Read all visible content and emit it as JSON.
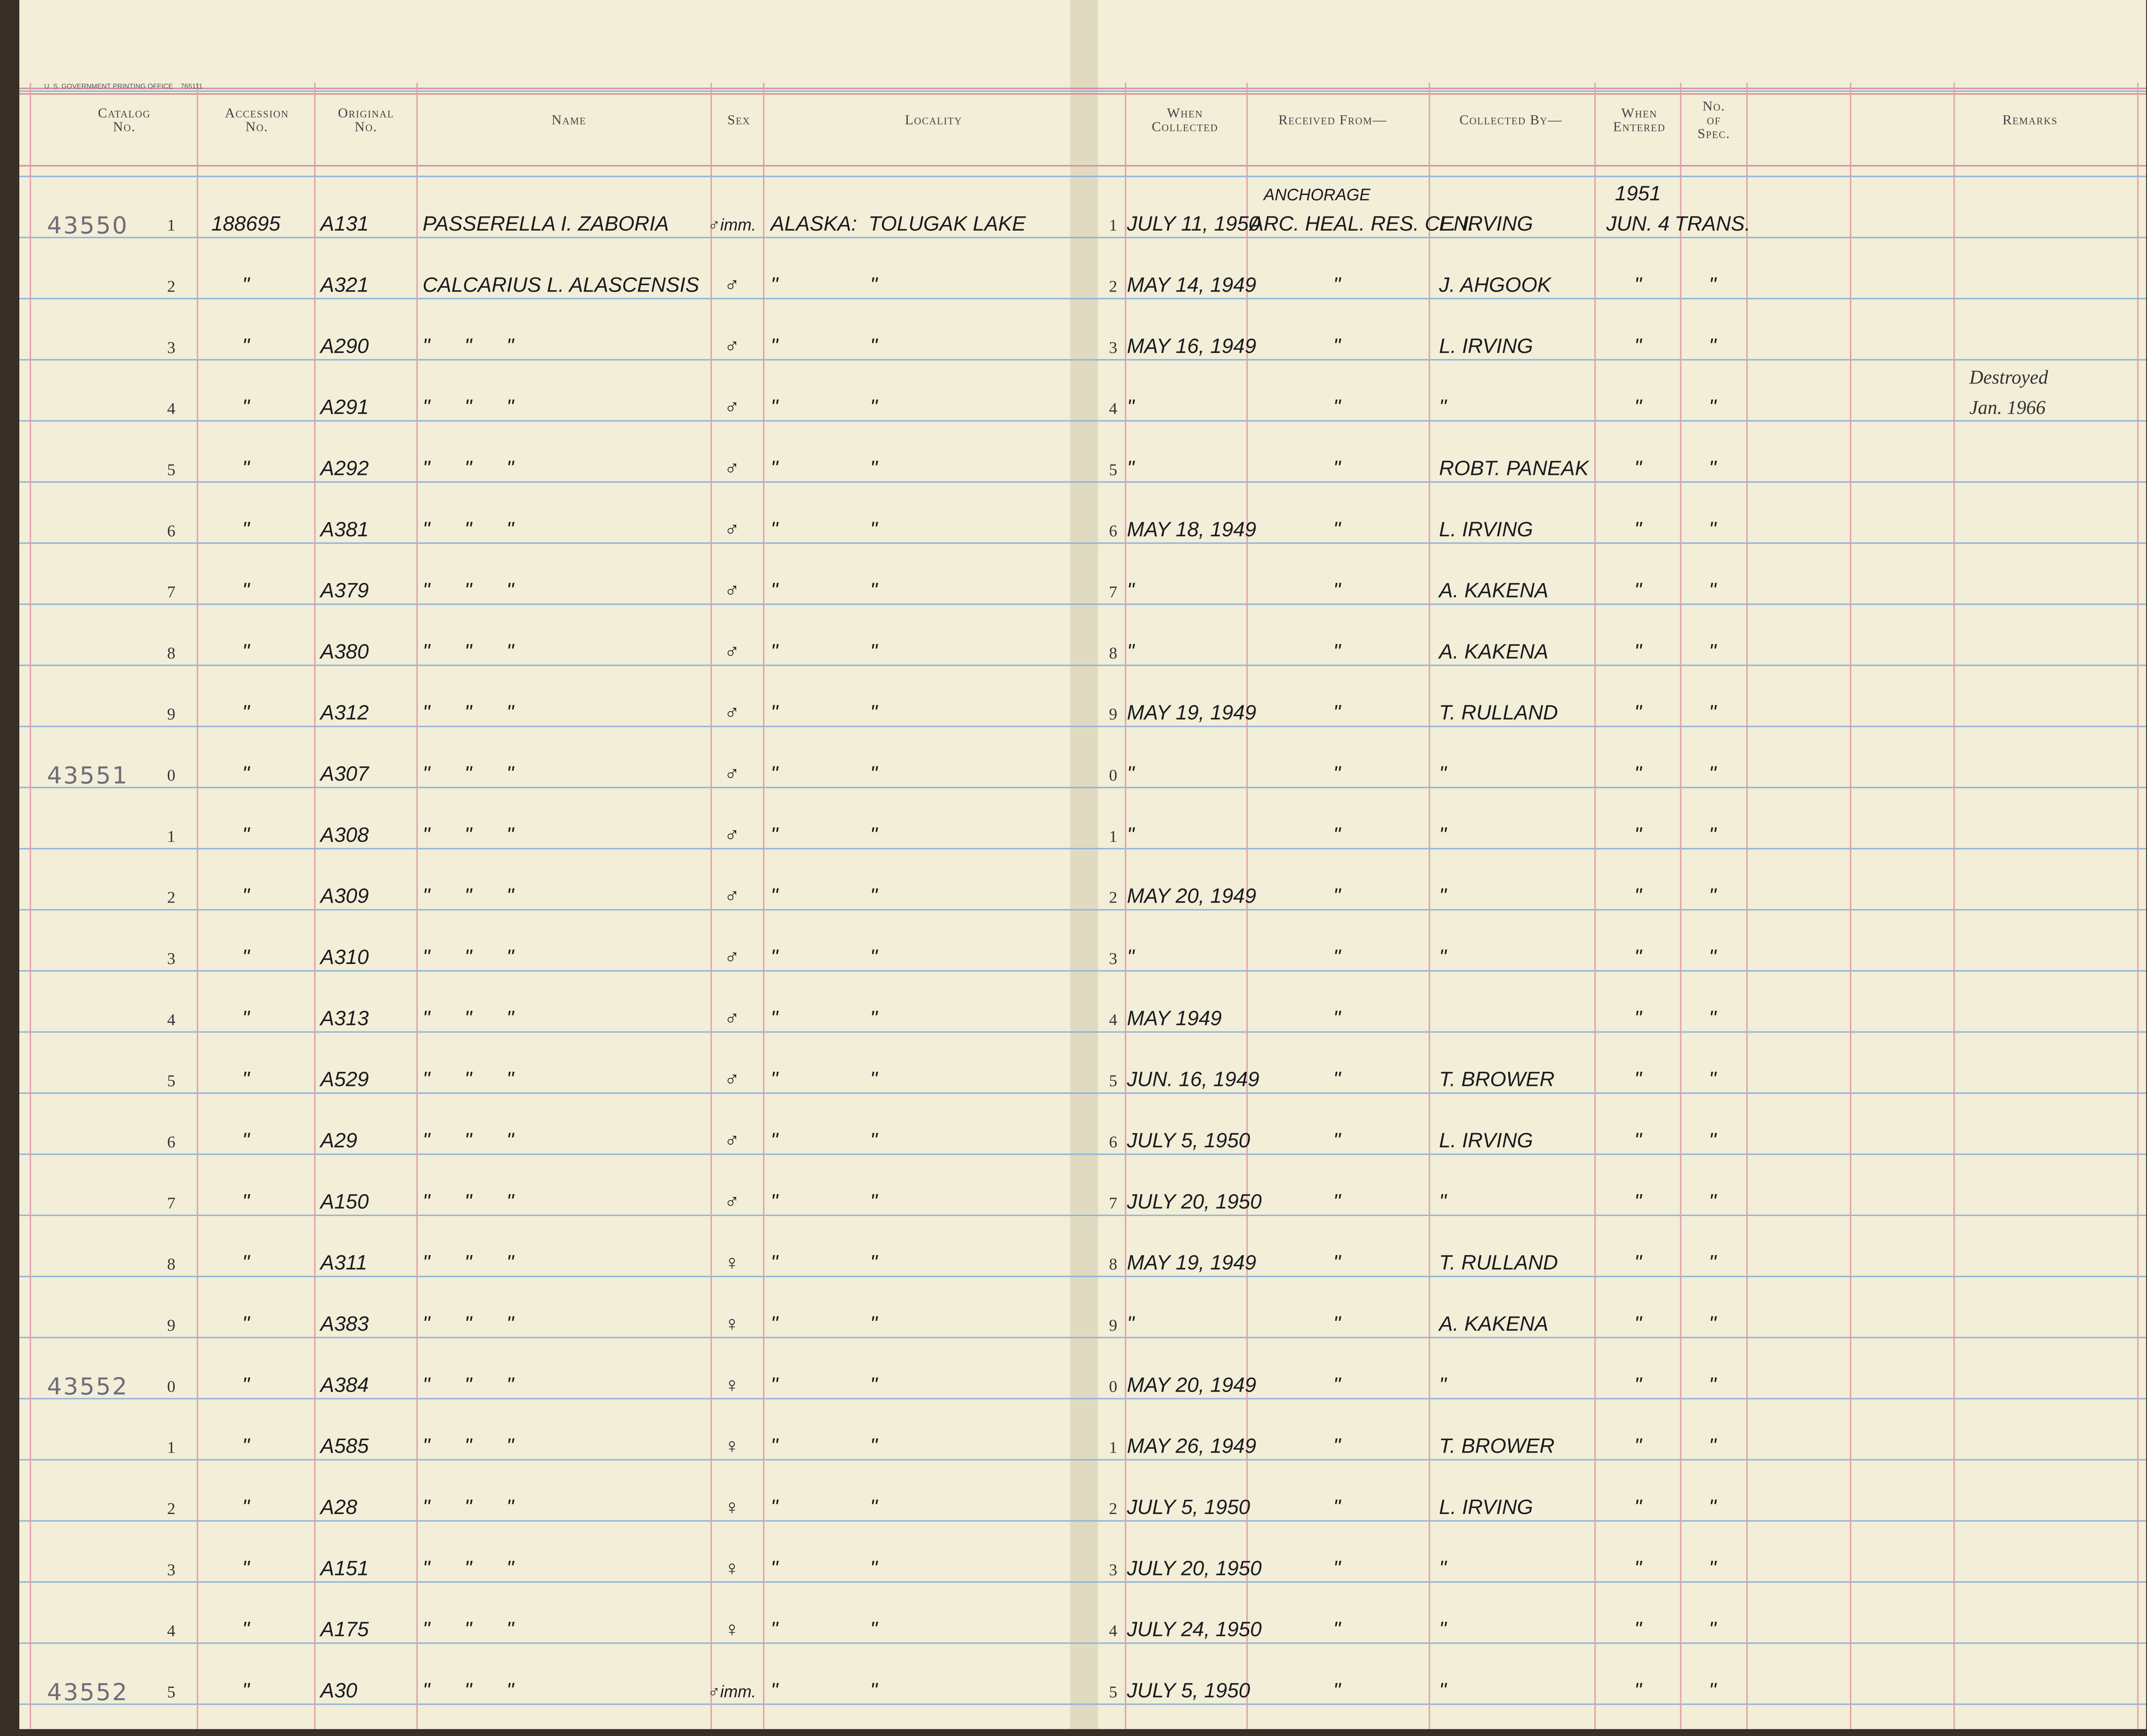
{
  "header": {
    "printer": "U. S. GOVERNMENT PRINTING OFFICE    765111",
    "columns": {
      "catalog": "Catalog No.",
      "accession": "Accession No.",
      "original": "Original No.",
      "name": "Name",
      "sex": "Sex",
      "locality": "Locality",
      "date": "When Collected",
      "received": "Received From—",
      "collector": "Collected By—",
      "entered": "When Entered",
      "spec": "No. of Spec.",
      "remarks": "Remarks"
    }
  },
  "table": {
    "rows": [
      {
        "catalog": "43550",
        "line": "1",
        "accession": "188695",
        "original": "A131",
        "name": "PASSERELLA I. ZABORIA",
        "sex": "♂imm.",
        "locality": "ALASKA:  TOLUGAK LAKE",
        "date": "JULY 11, 1950",
        "received": [
          "ANCHORAGE",
          "ARC. HEAL. RES. CEN."
        ],
        "collector": "L. IRVING",
        "entered": [
          "1951",
          "JUN. 4"
        ],
        "spec": "TRANS."
      },
      {
        "line": "2",
        "accession": "\"",
        "original": "A321",
        "name": "CALCARIUS L. ALASCENSIS",
        "sex": "♂",
        "locality": "\"                \"",
        "date": "MAY 14, 1949",
        "received": "\"",
        "collector": "J. AHGOOK",
        "entered": "\"",
        "spec": "\""
      },
      {
        "line": "3",
        "accession": "\"",
        "original": "A290",
        "name": "\"      \"      \"",
        "sex": "♂",
        "locality": "\"                \"",
        "date": "MAY 16, 1949",
        "received": "\"",
        "collector": "L. IRVING",
        "entered": "\"",
        "spec": "\""
      },
      {
        "line": "4",
        "accession": "\"",
        "original": "A291",
        "name": "\"      \"      \"",
        "sex": "♂",
        "locality": "\"                \"",
        "date": "\"",
        "received": "\"",
        "collector": "\"",
        "entered": "\"",
        "spec": "\"",
        "remarks": [
          "Destroyed",
          "Jan. 1966"
        ]
      },
      {
        "line": "5",
        "accession": "\"",
        "original": "A292",
        "name": "\"      \"      \"",
        "sex": "♂",
        "locality": "\"                \"",
        "date": "\"",
        "received": "\"",
        "collector": "ROBT. PANEAK",
        "entered": "\"",
        "spec": "\""
      },
      {
        "line": "6",
        "accession": "\"",
        "original": "A381",
        "name": "\"      \"      \"",
        "sex": "♂",
        "locality": "\"                \"",
        "date": "MAY 18, 1949",
        "received": "\"",
        "collector": "L. IRVING",
        "entered": "\"",
        "spec": "\""
      },
      {
        "line": "7",
        "accession": "\"",
        "original": "A379",
        "name": "\"      \"      \"",
        "sex": "♂",
        "locality": "\"                \"",
        "date": "\"",
        "received": "\"",
        "collector": "A. KAKENA",
        "entered": "\"",
        "spec": "\""
      },
      {
        "line": "8",
        "accession": "\"",
        "original": "A380",
        "name": "\"      \"      \"",
        "sex": "♂",
        "locality": "\"                \"",
        "date": "\"",
        "received": "\"",
        "collector": "A. KAKENA",
        "entered": "\"",
        "spec": "\""
      },
      {
        "line": "9",
        "accession": "\"",
        "original": "A312",
        "name": "\"      \"      \"",
        "sex": "♂",
        "locality": "\"                \"",
        "date": "MAY 19, 1949",
        "received": "\"",
        "collector": "T. RULLAND",
        "entered": "\"",
        "spec": "\""
      },
      {
        "catalog": "43551",
        "line": "0",
        "accession": "\"",
        "original": "A307",
        "name": "\"      \"      \"",
        "sex": "♂",
        "locality": "\"                \"",
        "date": "\"",
        "received": "\"",
        "collector": "\"",
        "entered": "\"",
        "spec": "\""
      },
      {
        "line": "1",
        "accession": "\"",
        "original": "A308",
        "name": "\"      \"      \"",
        "sex": "♂",
        "locality": "\"                \"",
        "date": "\"",
        "received": "\"",
        "collector": "\"",
        "entered": "\"",
        "spec": "\""
      },
      {
        "line": "2",
        "accession": "\"",
        "original": "A309",
        "name": "\"      \"      \"",
        "sex": "♂",
        "locality": "\"                \"",
        "date": "MAY 20, 1949",
        "received": "\"",
        "collector": "\"",
        "entered": "\"",
        "spec": "\""
      },
      {
        "line": "3",
        "accession": "\"",
        "original": "A310",
        "name": "\"      \"      \"",
        "sex": "♂",
        "locality": "\"                \"",
        "date": "\"",
        "received": "\"",
        "collector": "\"",
        "entered": "\"",
        "spec": "\""
      },
      {
        "line": "4",
        "accession": "\"",
        "original": "A313",
        "name": "\"      \"      \"",
        "sex": "♂",
        "locality": "\"                \"",
        "date": "MAY 1949",
        "received": "\"",
        "entered": "\"",
        "spec": "\""
      },
      {
        "line": "5",
        "accession": "\"",
        "original": "A529",
        "name": "\"      \"      \"",
        "sex": "♂",
        "locality": "\"                \"",
        "date": "JUN. 16, 1949",
        "received": "\"",
        "collector": "T. BROWER",
        "entered": "\"",
        "spec": "\""
      },
      {
        "line": "6",
        "accession": "\"",
        "original": "A29",
        "name": "\"      \"      \"",
        "sex": "♂",
        "locality": "\"                \"",
        "date": "JULY 5, 1950",
        "received": "\"",
        "collector": "L. IRVING",
        "entered": "\"",
        "spec": "\""
      },
      {
        "line": "7",
        "accession": "\"",
        "original": "A150",
        "name": "\"      \"      \"",
        "sex": "♂",
        "locality": "\"                \"",
        "date": "JULY 20, 1950",
        "received": "\"",
        "collector": "\"",
        "entered": "\"",
        "spec": "\""
      },
      {
        "line": "8",
        "accession": "\"",
        "original": "A311",
        "name": "\"      \"      \"",
        "sex": "♀",
        "locality": "\"                \"",
        "date": "MAY 19, 1949",
        "received": "\"",
        "collector": "T. RULLAND",
        "entered": "\"",
        "spec": "\""
      },
      {
        "line": "9",
        "accession": "\"",
        "original": "A383",
        "name": "\"      \"      \"",
        "sex": "♀",
        "locality": "\"                \"",
        "date": "\"",
        "received": "\"",
        "collector": "A. KAKENA",
        "entered": "\"",
        "spec": "\""
      },
      {
        "catalog": "43552",
        "line": "0",
        "accession": "\"",
        "original": "A384",
        "name": "\"      \"      \"",
        "sex": "♀",
        "locality": "\"                \"",
        "date": "MAY 20, 1949",
        "received": "\"",
        "collector": "\"",
        "entered": "\"",
        "spec": "\""
      },
      {
        "line": "1",
        "accession": "\"",
        "original": "A585",
        "name": "\"      \"      \"",
        "sex": "♀",
        "locality": "\"                \"",
        "date": "MAY 26, 1949",
        "received": "\"",
        "collector": "T. BROWER",
        "entered": "\"",
        "spec": "\""
      },
      {
        "line": "2",
        "accession": "\"",
        "original": "A28",
        "name": "\"      \"      \"",
        "sex": "♀",
        "locality": "\"                \"",
        "date": "JULY 5, 1950",
        "received": "\"",
        "collector": "L. IRVING",
        "entered": "\"",
        "spec": "\""
      },
      {
        "line": "3",
        "accession": "\"",
        "original": "A151",
        "name": "\"      \"      \"",
        "sex": "♀",
        "locality": "\"                \"",
        "date": "JULY 20, 1950",
        "received": "\"",
        "collector": "\"",
        "entered": "\"",
        "spec": "\""
      },
      {
        "line": "4",
        "accession": "\"",
        "original": "A175",
        "name": "\"      \"      \"",
        "sex": "♀",
        "locality": "\"                \"",
        "date": "JULY 24, 1950",
        "received": "\"",
        "collector": "\"",
        "entered": "\"",
        "spec": "\""
      },
      {
        "catalog": "43552",
        "line": "5",
        "accession": "\"",
        "original": "A30",
        "name": "\"      \"      \"",
        "sex": "♂imm.",
        "locality": "\"                \"",
        "date": "JULY 5, 1950",
        "received": "\"",
        "collector": "\"",
        "entered": "\"",
        "spec": "\""
      }
    ]
  }
}
